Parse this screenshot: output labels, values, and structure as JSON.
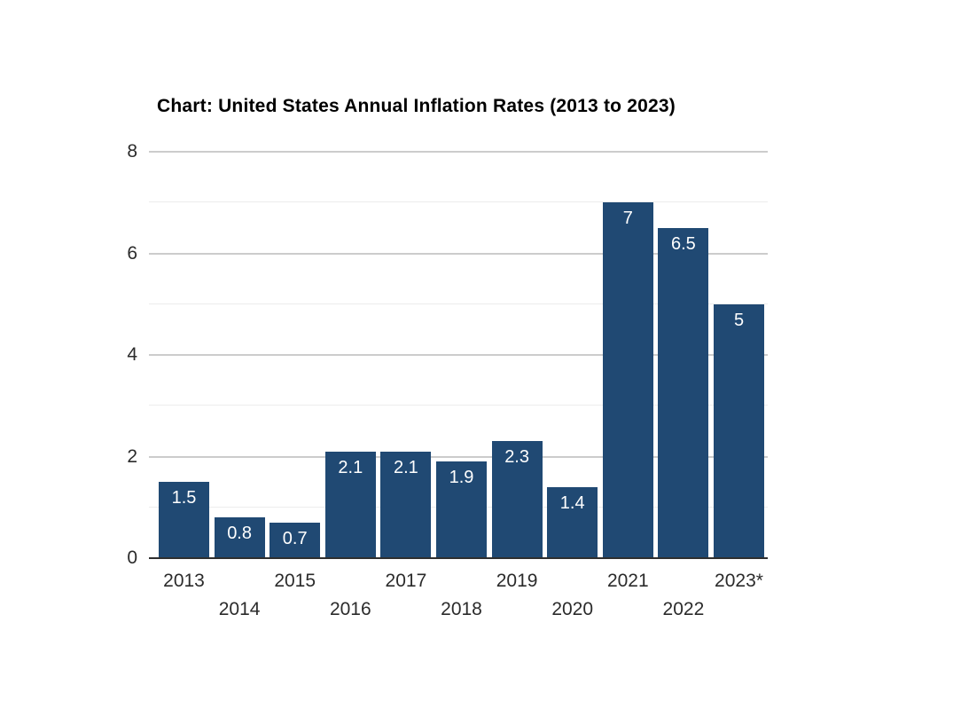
{
  "chart_data": {
    "type": "bar",
    "title": "Chart: United States Annual Inflation Rates (2013 to 2023)",
    "categories": [
      "2013",
      "2014",
      "2015",
      "2016",
      "2017",
      "2018",
      "2019",
      "2020",
      "2021",
      "2022",
      "2023*"
    ],
    "values": [
      1.5,
      0.8,
      0.7,
      2.1,
      2.1,
      1.9,
      2.3,
      1.4,
      7,
      6.5,
      5
    ],
    "data_labels": [
      "1.5",
      "0.8",
      "0.7",
      "2.1",
      "2.1",
      "1.9",
      "2.3",
      "1.4",
      "7",
      "6.5",
      "5"
    ],
    "xlabel": "",
    "ylabel": "",
    "ylim": [
      0,
      8
    ],
    "yticks_labeled": [
      "0",
      "2",
      "4",
      "6",
      "8"
    ],
    "ytick_values": [
      0,
      2,
      4,
      6,
      8
    ],
    "minor_gridline_values": [
      1,
      3,
      5,
      7
    ],
    "grid": true,
    "legend_position": "none",
    "colors": {
      "bar": "#204973",
      "bar_value_label": "#ffffff",
      "major_gridline": "#cccccc",
      "minor_gridline": "#ececec",
      "axis_line": "#2f2f2f",
      "tick_label": "#2b2b2b",
      "title": "#000000",
      "background": "#ffffff"
    }
  }
}
